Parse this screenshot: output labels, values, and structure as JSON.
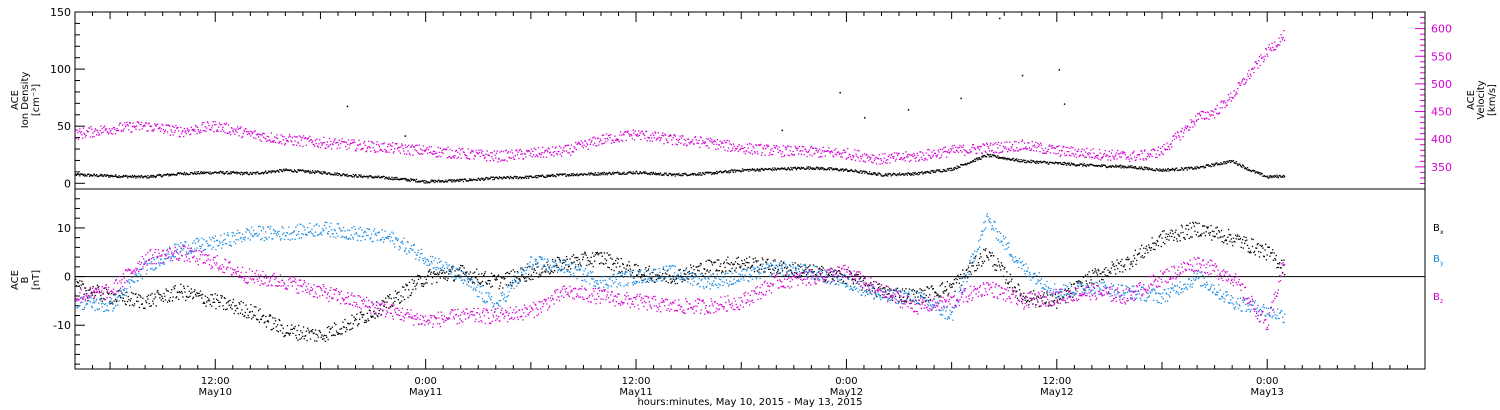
{
  "colors": {
    "black": "#000000",
    "blue": "#1a8be0",
    "magenta": "#d400d4",
    "axis": "#000000"
  },
  "xaxis": {
    "label": "hours:minutes, May 10, 2015 - May 13, 2015",
    "ticks": [
      {
        "t": 12,
        "time": "12:00",
        "date": "May10"
      },
      {
        "t": 24,
        "time": "0:00",
        "date": "May11"
      },
      {
        "t": 36,
        "time": "12:00",
        "date": "May11"
      },
      {
        "t": 48,
        "time": "0:00",
        "date": "May12"
      },
      {
        "t": 60,
        "time": "12:00",
        "date": "May12"
      },
      {
        "t": 72,
        "time": "0:00",
        "date": "May13"
      }
    ]
  },
  "chart_data": [
    {
      "type": "scatter",
      "panel": "top",
      "x_unit": "hours since 2015-05-10 00:00",
      "xlim": [
        4,
        81
      ],
      "ylabel_left": [
        "ACE",
        "Ion Density",
        "[cm⁻³]"
      ],
      "ylabel_right": [
        "ACE",
        "Velocity",
        "[km/s]"
      ],
      "ylim_left": [
        -5,
        150
      ],
      "ylim_right": [
        310,
        630
      ],
      "yticks_left": [
        0,
        50,
        100,
        150
      ],
      "yticks_right": [
        350,
        400,
        450,
        500,
        550,
        600
      ],
      "series": [
        {
          "axis": "left",
          "color": "black",
          "spread": 1.2,
          "x": [
            4,
            6,
            8,
            10,
            12,
            14,
            16,
            18,
            20,
            22,
            24,
            26,
            28,
            30,
            32,
            34,
            36,
            38,
            40,
            42,
            44,
            46,
            48,
            50,
            52,
            54,
            56,
            58,
            60,
            62,
            64,
            66,
            68,
            70,
            71,
            72,
            73
          ],
          "y": [
            8,
            7,
            6,
            9,
            10,
            9,
            12,
            10,
            7,
            5,
            2,
            3,
            5,
            6,
            8,
            9,
            10,
            8,
            9,
            12,
            13,
            14,
            12,
            8,
            9,
            13,
            25,
            20,
            18,
            16,
            15,
            12,
            14,
            20,
            12,
            6,
            7
          ]
        },
        {
          "axis": "right",
          "color": "magenta",
          "spread": 10,
          "x": [
            4,
            6,
            8,
            10,
            12,
            14,
            16,
            18,
            20,
            22,
            24,
            26,
            28,
            30,
            32,
            34,
            36,
            38,
            40,
            42,
            44,
            46,
            48,
            50,
            52,
            54,
            56,
            58,
            60,
            62,
            64,
            65,
            66,
            67,
            68,
            69,
            70,
            71,
            72,
            73
          ],
          "y": [
            410,
            420,
            425,
            415,
            425,
            410,
            400,
            395,
            390,
            385,
            380,
            375,
            370,
            375,
            380,
            400,
            410,
            400,
            395,
            385,
            380,
            378,
            375,
            365,
            370,
            380,
            385,
            390,
            380,
            375,
            370,
            372,
            380,
            410,
            440,
            450,
            480,
            520,
            560,
            590
          ]
        }
      ],
      "outliers": [
        {
          "x": 44.3,
          "y": 47,
          "color": "black"
        },
        {
          "x": 47.6,
          "y": 80,
          "color": "black"
        },
        {
          "x": 56.7,
          "y": 145,
          "color": "black"
        },
        {
          "x": 54.5,
          "y": 75,
          "color": "black"
        },
        {
          "x": 58.0,
          "y": 95,
          "color": "black"
        },
        {
          "x": 60.1,
          "y": 100,
          "color": "black"
        },
        {
          "x": 60.4,
          "y": 70,
          "color": "black"
        },
        {
          "x": 19.5,
          "y": 68,
          "color": "black"
        },
        {
          "x": 22.8,
          "y": 42,
          "color": "black"
        },
        {
          "x": 49.0,
          "y": 58,
          "color": "black"
        },
        {
          "x": 51.5,
          "y": 65,
          "color": "black"
        }
      ]
    },
    {
      "type": "scatter",
      "panel": "bottom",
      "x_unit": "hours since 2015-05-10 00:00",
      "xlim": [
        4,
        81
      ],
      "ylabel_left": [
        "ACE",
        "B",
        "[nT]"
      ],
      "ylim": [
        -19,
        18
      ],
      "yticks": [
        -10,
        0,
        10
      ],
      "zero_line": true,
      "legend": [
        {
          "label": "B",
          "sub": "x",
          "color": "black"
        },
        {
          "label": "B",
          "sub": "y",
          "color": "blue"
        },
        {
          "label": "B",
          "sub": "z",
          "color": "magenta"
        }
      ],
      "series": [
        {
          "name": "Bx",
          "color": "black",
          "spread": 1.6,
          "x": [
            4,
            6,
            8,
            10,
            12,
            14,
            16,
            18,
            20,
            22,
            24,
            26,
            28,
            30,
            32,
            34,
            36,
            38,
            40,
            42,
            44,
            46,
            48,
            50,
            52,
            54,
            56,
            58,
            60,
            62,
            64,
            66,
            68,
            70,
            72,
            73
          ],
          "y": [
            -2,
            -4,
            -5,
            -3,
            -5,
            -7,
            -11,
            -12,
            -9,
            -5,
            0,
            1,
            -1,
            1,
            3,
            4,
            1,
            0,
            2,
            3,
            2,
            1,
            0,
            -3,
            -4,
            -2,
            5,
            -4,
            -5,
            0,
            3,
            8,
            10,
            8,
            5,
            2
          ]
        },
        {
          "name": "By",
          "color": "blue",
          "spread": 1.5,
          "x": [
            4,
            6,
            8,
            10,
            12,
            14,
            16,
            18,
            20,
            22,
            24,
            26,
            28,
            30,
            32,
            34,
            36,
            38,
            40,
            42,
            44,
            46,
            48,
            50,
            52,
            54,
            56,
            58,
            60,
            62,
            64,
            66,
            68,
            70,
            72,
            73
          ],
          "y": [
            -5,
            -6,
            2,
            6,
            7,
            9,
            9,
            10,
            9,
            8,
            4,
            0,
            -6,
            3,
            2,
            -1,
            0,
            1,
            -1,
            0,
            2,
            1,
            -1,
            -4,
            -4,
            -8,
            12,
            2,
            -3,
            -2,
            -3,
            -4,
            0,
            -5,
            -7,
            -8
          ]
        },
        {
          "name": "Bz",
          "color": "magenta",
          "spread": 1.6,
          "x": [
            4,
            6,
            8,
            10,
            12,
            14,
            16,
            18,
            20,
            22,
            24,
            26,
            28,
            30,
            32,
            34,
            36,
            38,
            40,
            42,
            44,
            46,
            48,
            50,
            52,
            54,
            56,
            58,
            60,
            62,
            64,
            66,
            68,
            70,
            72,
            73
          ],
          "y": [
            -4,
            -3,
            4,
            5,
            3,
            0,
            -1,
            -3,
            -5,
            -7,
            -9,
            -8,
            -8,
            -7,
            -3,
            -4,
            -5,
            -6,
            -6,
            -5,
            -1,
            0,
            1,
            -3,
            -6,
            -5,
            -2,
            -5,
            -4,
            -3,
            -4,
            0,
            3,
            0,
            -10,
            4
          ]
        }
      ]
    }
  ]
}
